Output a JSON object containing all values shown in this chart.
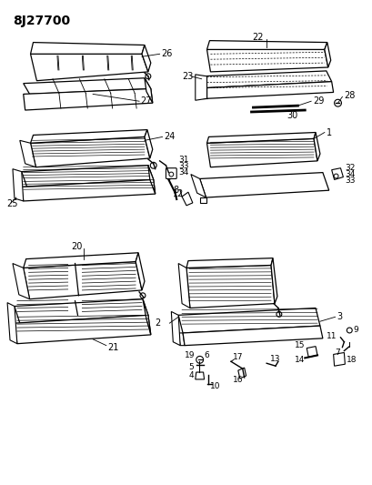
{
  "title": "8J27700",
  "bg_color": "#ffffff",
  "title_fontsize": 10,
  "title_fontweight": "bold",
  "figsize": [
    4.09,
    5.33
  ],
  "dpi": 100
}
